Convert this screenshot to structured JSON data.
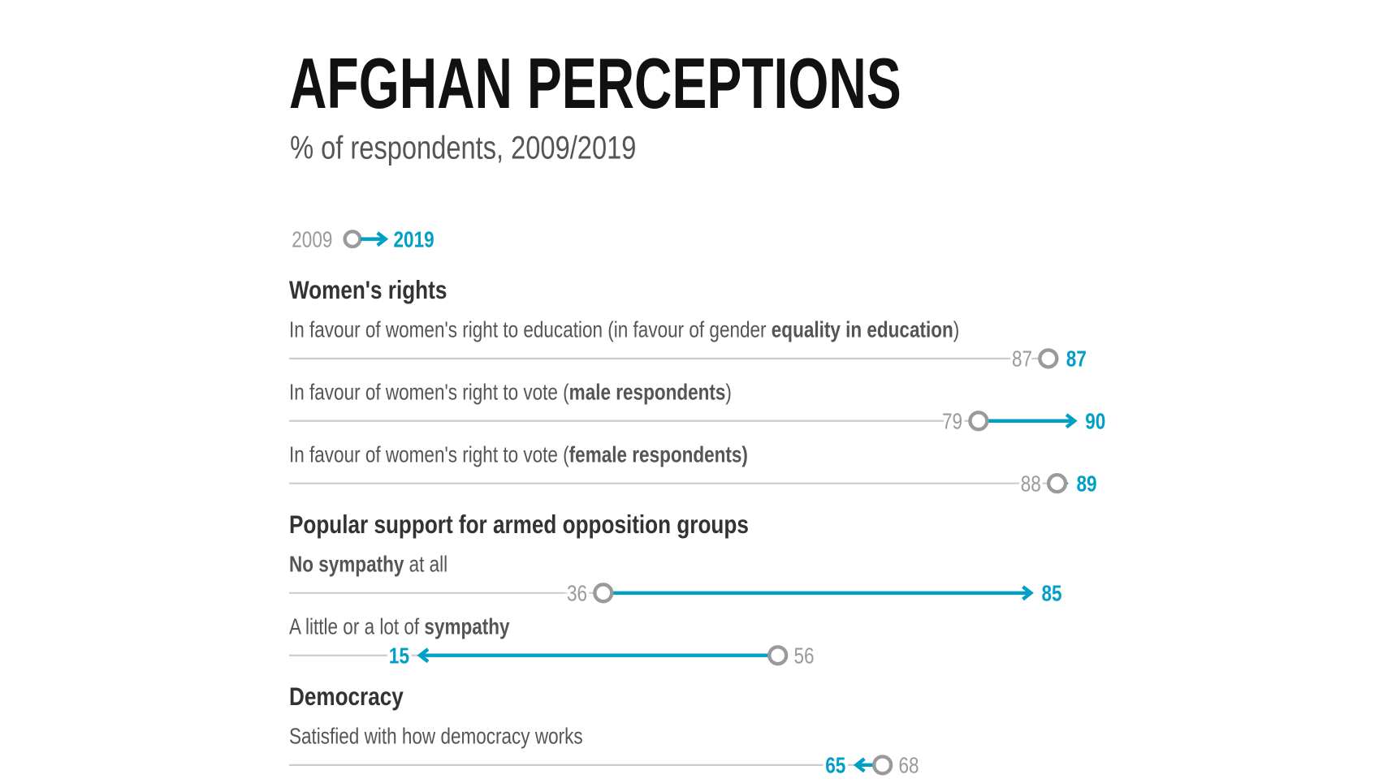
{
  "title": "AFGHAN PERCEPTIONS",
  "subtitle": "% of respondents, 2009/2019",
  "colors": {
    "y2009": "#9a9a9a",
    "y2019": "#00a0c6",
    "baseline": "#cccccc"
  },
  "legend": {
    "from": "2009",
    "to": "2019"
  },
  "chart_data": {
    "type": "dumbbell-arrow",
    "title": "AFGHAN PERCEPTIONS",
    "subtitle": "% of respondents, 2009/2019",
    "xlim": [
      0,
      100
    ],
    "series": [
      "2009",
      "2019"
    ],
    "groups": [
      {
        "heading": "Women's rights",
        "rows": [
          {
            "label": [
              {
                "t": "In favour of women's right to education (in favour of gender ",
                "b": false
              },
              {
                "t": "equality in education",
                "b": true
              },
              {
                "t": ")",
                "b": false
              }
            ],
            "v2009": 87,
            "v2019": 87
          },
          {
            "label": [
              {
                "t": "In favour of women's right to vote (",
                "b": false
              },
              {
                "t": "male respondents",
                "b": true
              },
              {
                "t": ")",
                "b": false
              }
            ],
            "v2009": 79,
            "v2019": 90
          },
          {
            "label": [
              {
                "t": "In favour of women's right to vote (",
                "b": false
              },
              {
                "t": "female respondents)",
                "b": true
              }
            ],
            "v2009": 88,
            "v2019": 89
          }
        ]
      },
      {
        "heading": "Popular support for armed opposition groups",
        "rows": [
          {
            "label": [
              {
                "t": "No sympathy",
                "b": true
              },
              {
                "t": " at all",
                "b": false
              }
            ],
            "v2009": 36,
            "v2019": 85
          },
          {
            "label": [
              {
                "t": "A little or a lot of ",
                "b": false
              },
              {
                "t": "sympathy",
                "b": true
              }
            ],
            "v2009": 56,
            "v2019": 15
          }
        ]
      },
      {
        "heading": "Democracy",
        "rows": [
          {
            "label": [
              {
                "t": "Satisfied with how democracy works",
                "b": false
              }
            ],
            "v2009": 68,
            "v2019": 65
          }
        ]
      }
    ]
  }
}
